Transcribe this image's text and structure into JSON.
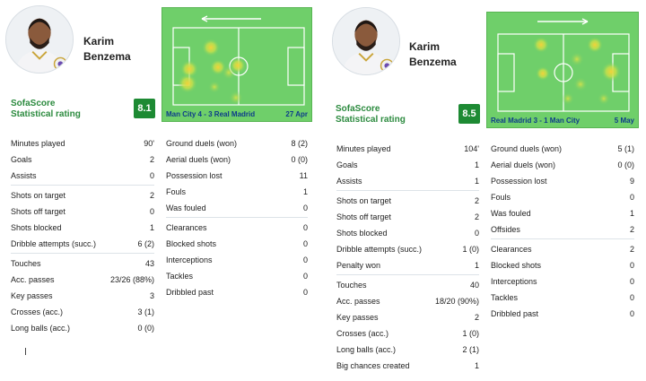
{
  "cards": [
    {
      "player": {
        "first_name": "Karim",
        "last_name": "Benzema"
      },
      "rating": {
        "brand": "SofaScore",
        "label": "Statistical rating",
        "value": "8.1"
      },
      "heatmap": {
        "direction": "left",
        "match": "Man City 4 - 3 Real Madrid",
        "date": "27 Apr"
      },
      "left_groups": [
        [
          {
            "label": "Minutes played",
            "value": "90'"
          },
          {
            "label": "Goals",
            "value": "2"
          },
          {
            "label": "Assists",
            "value": "0"
          }
        ],
        [
          {
            "label": "Shots on target",
            "value": "2"
          },
          {
            "label": "Shots off target",
            "value": "0"
          },
          {
            "label": "Shots blocked",
            "value": "1"
          },
          {
            "label": "Dribble attempts (succ.)",
            "value": "6 (2)"
          }
        ],
        [
          {
            "label": "Touches",
            "value": "43"
          },
          {
            "label": "Acc. passes",
            "value": "23/26 (88%)"
          },
          {
            "label": "Key passes",
            "value": "3"
          },
          {
            "label": "Crosses (acc.)",
            "value": "3 (1)"
          },
          {
            "label": "Long balls (acc.)",
            "value": "0 (0)"
          }
        ]
      ],
      "right_groups": [
        [
          {
            "label": "Ground duels (won)",
            "value": "8 (2)"
          },
          {
            "label": "Aerial duels (won)",
            "value": "0 (0)"
          },
          {
            "label": "Possession lost",
            "value": "11"
          },
          {
            "label": "Fouls",
            "value": "1"
          },
          {
            "label": "Was fouled",
            "value": "0"
          }
        ],
        [
          {
            "label": "Clearances",
            "value": "0"
          },
          {
            "label": "Blocked shots",
            "value": "0"
          },
          {
            "label": "Interceptions",
            "value": "0"
          },
          {
            "label": "Tackles",
            "value": "0"
          },
          {
            "label": "Dribbled past",
            "value": "0"
          }
        ]
      ]
    },
    {
      "player": {
        "first_name": "Karim",
        "last_name": "Benzema"
      },
      "rating": {
        "brand": "SofaScore",
        "label": "Statistical rating",
        "value": "8.5"
      },
      "heatmap": {
        "direction": "right",
        "match": "Real Madrid 3 - 1 Man City",
        "date": "5 May"
      },
      "left_groups": [
        [
          {
            "label": "Minutes played",
            "value": "104'"
          },
          {
            "label": "Goals",
            "value": "1"
          },
          {
            "label": "Assists",
            "value": "1"
          }
        ],
        [
          {
            "label": "Shots on target",
            "value": "2"
          },
          {
            "label": "Shots off target",
            "value": "2"
          },
          {
            "label": "Shots blocked",
            "value": "0"
          },
          {
            "label": "Dribble attempts (succ.)",
            "value": "1 (0)"
          },
          {
            "label": "Penalty won",
            "value": "1"
          }
        ],
        [
          {
            "label": "Touches",
            "value": "40"
          },
          {
            "label": "Acc. passes",
            "value": "18/20 (90%)"
          },
          {
            "label": "Key passes",
            "value": "2"
          },
          {
            "label": "Crosses (acc.)",
            "value": "1 (0)"
          },
          {
            "label": "Long balls (acc.)",
            "value": "2 (1)"
          },
          {
            "label": "Big chances created",
            "value": "1"
          }
        ]
      ],
      "right_groups": [
        [
          {
            "label": "Ground duels (won)",
            "value": "5 (1)"
          },
          {
            "label": "Aerial duels (won)",
            "value": "0 (0)"
          },
          {
            "label": "Possession lost",
            "value": "9"
          },
          {
            "label": "Fouls",
            "value": "0"
          },
          {
            "label": "Was fouled",
            "value": "1"
          },
          {
            "label": "Offsides",
            "value": "2"
          }
        ],
        [
          {
            "label": "Clearances",
            "value": "2"
          },
          {
            "label": "Blocked shots",
            "value": "0"
          },
          {
            "label": "Interceptions",
            "value": "0"
          },
          {
            "label": "Tackles",
            "value": "0"
          },
          {
            "label": "Dribbled past",
            "value": "0"
          }
        ]
      ]
    }
  ],
  "colors": {
    "rating_badge": "#1d8a33",
    "brand_text": "#2b8a3e",
    "pitch": "#6fcf6a",
    "heat_hot": "#f2d23a",
    "heat_mid": "#c9e04a",
    "match_text": "#0d3c8a"
  }
}
